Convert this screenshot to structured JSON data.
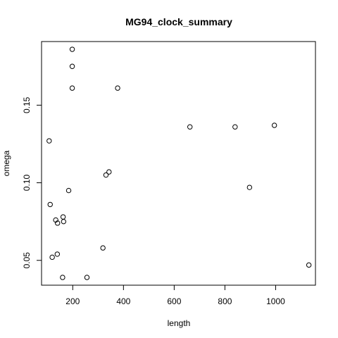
{
  "chart_data": {
    "type": "scatter",
    "title": "MG94_clock_summary",
    "xlabel": "length",
    "ylabel": "omega",
    "xlim": [
      77,
      1157
    ],
    "ylim": [
      0.034,
      0.191
    ],
    "x_ticks": [
      200,
      400,
      600,
      800,
      1000
    ],
    "x_tick_labels": [
      "200",
      "400",
      "600",
      "800",
      "1000"
    ],
    "y_ticks": [
      0.05,
      0.1,
      0.15
    ],
    "y_tick_labels": [
      "0.05",
      "0.10",
      "0.15"
    ],
    "grid": false,
    "legend": "none",
    "points": [
      {
        "x": 198,
        "y": 0.186
      },
      {
        "x": 198,
        "y": 0.175
      },
      {
        "x": 198,
        "y": 0.161
      },
      {
        "x": 377,
        "y": 0.161
      },
      {
        "x": 662,
        "y": 0.136
      },
      {
        "x": 840,
        "y": 0.136
      },
      {
        "x": 995,
        "y": 0.137
      },
      {
        "x": 107,
        "y": 0.127
      },
      {
        "x": 343,
        "y": 0.107
      },
      {
        "x": 331,
        "y": 0.105
      },
      {
        "x": 184,
        "y": 0.095
      },
      {
        "x": 897,
        "y": 0.097
      },
      {
        "x": 111,
        "y": 0.086
      },
      {
        "x": 162,
        "y": 0.078
      },
      {
        "x": 133,
        "y": 0.076
      },
      {
        "x": 164,
        "y": 0.075
      },
      {
        "x": 140,
        "y": 0.074
      },
      {
        "x": 319,
        "y": 0.058
      },
      {
        "x": 139,
        "y": 0.054
      },
      {
        "x": 119,
        "y": 0.052
      },
      {
        "x": 1131,
        "y": 0.047
      },
      {
        "x": 160,
        "y": 0.039
      },
      {
        "x": 256,
        "y": 0.039
      }
    ]
  }
}
